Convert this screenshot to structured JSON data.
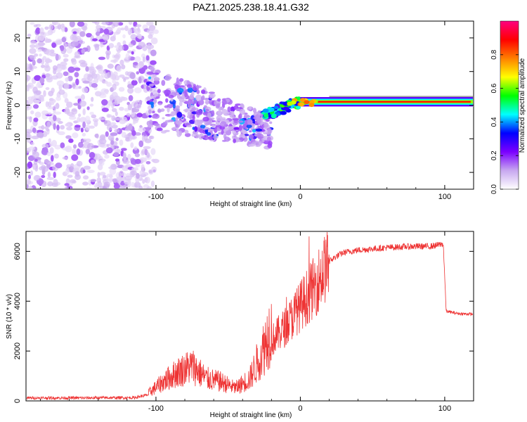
{
  "title": "PAZ1.2025.238.18.41.G32",
  "chart_data": [
    {
      "type": "heatmap",
      "name": "spectrogram",
      "xlabel": "Height of straight line (km)",
      "ylabel": "Frequency (Hz)",
      "xlim": [
        -190,
        120
      ],
      "ylim": [
        -25,
        25
      ],
      "x_ticks": [
        -100,
        0,
        100
      ],
      "x_tick_labels": [
        "-100",
        "0",
        "100"
      ],
      "y_ticks": [
        -20,
        -10,
        0,
        10,
        20
      ],
      "y_tick_labels": [
        "-20",
        "-10",
        "0",
        "10",
        "20"
      ],
      "colorbar": {
        "label": "Normalized spectral amplitude",
        "range": [
          0,
          1
        ],
        "ticks": [
          0.0,
          0.2,
          0.4,
          0.6,
          0.8
        ],
        "tick_labels": [
          "0.0",
          "0.2",
          "0.4",
          "0.6",
          "0.8"
        ],
        "colors": [
          "#ffffff",
          "#c8a8f0",
          "#7b00ff",
          "#0000ff",
          "#00ffff",
          "#00ff00",
          "#ffff00",
          "#ff8000",
          "#ff0000",
          "#ff0080"
        ]
      },
      "regions": [
        {
          "x_range": [
            -190,
            -105
          ],
          "freq_range": [
            -25,
            25
          ],
          "amplitude": 0.05,
          "description": "noise"
        },
        {
          "x_range": [
            -105,
            -20
          ],
          "freq_center": [
            2,
            -8
          ],
          "amplitude": 0.2,
          "description": "scattered signal"
        },
        {
          "x_range": [
            -20,
            0
          ],
          "freq_center": [
            -3,
            1
          ],
          "amplitude": 0.5
        },
        {
          "x_range": [
            0,
            120
          ],
          "freq_center": [
            1,
            1
          ],
          "amplitude": 0.9,
          "description": "steady tone"
        }
      ]
    },
    {
      "type": "line",
      "name": "snr",
      "xlabel": "Height of straight line (km)",
      "ylabel": "SNR (10 * v/v)",
      "xlim": [
        -190,
        120
      ],
      "ylim": [
        0,
        6800
      ],
      "x_ticks": [
        -100,
        0,
        100
      ],
      "x_tick_labels": [
        "-100",
        "0",
        "100"
      ],
      "y_ticks": [
        0,
        2000,
        4000,
        6000
      ],
      "y_tick_labels": [
        "0",
        "2000",
        "4000",
        "6000"
      ],
      "line_color": "#ee3333",
      "series": [
        {
          "name": "SNR envelope",
          "x": [
            -190,
            -150,
            -115,
            -105,
            -95,
            -85,
            -75,
            -65,
            -55,
            -45,
            -35,
            -30,
            -25,
            -20,
            -15,
            -10,
            -5,
            0,
            5,
            10,
            15,
            20,
            25,
            30,
            40,
            50,
            60,
            70,
            80,
            90,
            95,
            99,
            101,
            105,
            110,
            120
          ],
          "values": [
            120,
            120,
            130,
            250,
            600,
            900,
            1100,
            700,
            600,
            400,
            700,
            1200,
            1700,
            2400,
            2700,
            3000,
            3400,
            3800,
            4200,
            4600,
            5100,
            5600,
            5800,
            5950,
            6050,
            6100,
            6150,
            6180,
            6200,
            6200,
            6250,
            6300,
            3600,
            3550,
            3500,
            3480
          ]
        }
      ]
    }
  ]
}
